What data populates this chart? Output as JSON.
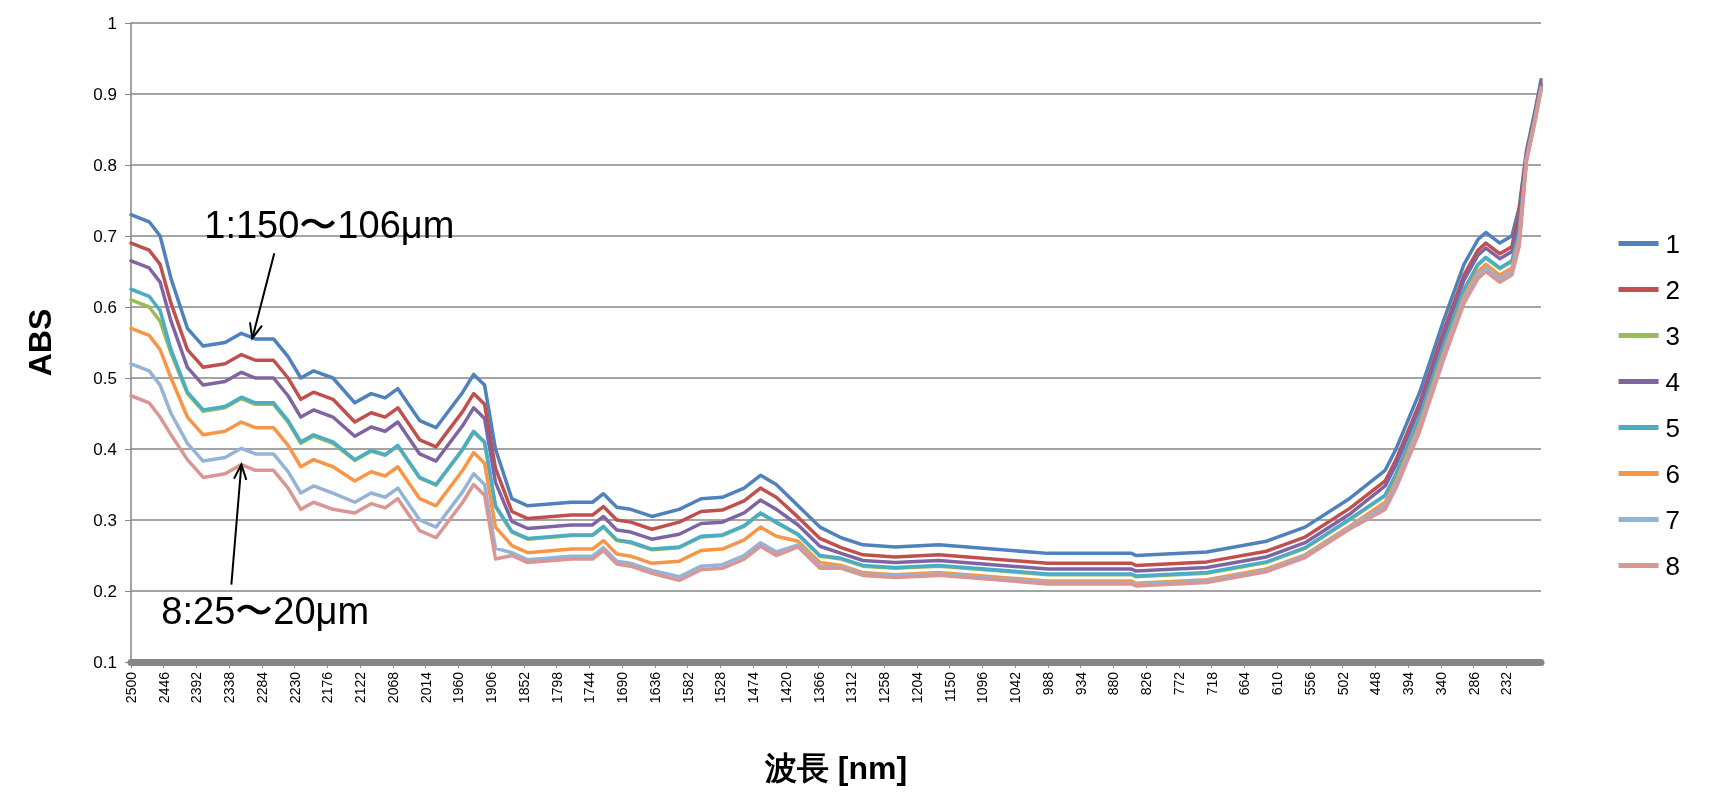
{
  "chart_data": {
    "type": "line",
    "xlabel": "波長 [nm]",
    "ylabel": "ABS",
    "xlim": [
      2500,
      175
    ],
    "ylim": [
      0.1,
      1
    ],
    "xticks": [
      2500,
      2446,
      2392,
      2338,
      2284,
      2230,
      2176,
      2122,
      2068,
      2014,
      1960,
      1906,
      1852,
      1798,
      1744,
      1690,
      1636,
      1582,
      1528,
      1474,
      1420,
      1366,
      1312,
      1258,
      1204,
      1150,
      1096,
      1042,
      988,
      934,
      880,
      826,
      772,
      718,
      664,
      610,
      556,
      502,
      448,
      394,
      340,
      286,
      232
    ],
    "yticks": [
      0.1,
      0.2,
      0.3,
      0.4,
      0.5,
      0.6,
      0.7,
      0.8,
      0.9,
      1
    ],
    "grid": "y",
    "legend": "right",
    "marker": "none",
    "line_style": "solid",
    "annotations": [
      {
        "text": "1:150〜106μm",
        "x": 2300,
        "y": 0.556
      },
      {
        "text": "8:25〜20μm",
        "x": 2318,
        "y": 0.378
      }
    ],
    "x": [
      2500,
      2470,
      2452,
      2434,
      2407,
      2381,
      2345,
      2318,
      2295,
      2265,
      2241,
      2220,
      2199,
      2167,
      2131,
      2104,
      2081,
      2060,
      2024,
      1997,
      1953,
      1935,
      1917,
      1899,
      1872,
      1846,
      1774,
      1739,
      1721,
      1699,
      1676,
      1641,
      1596,
      1560,
      1525,
      1489,
      1462,
      1436,
      1400,
      1364,
      1329,
      1293,
      1240,
      1168,
      988,
      850,
      843,
      726,
      628,
      564,
      491,
      432,
      414,
      375,
      336,
      302,
      279,
      266,
      243,
      223,
      211,
      199,
      184,
      175
    ],
    "series": [
      {
        "name": "1",
        "color": "#4f81bd",
        "values": [
          0.73,
          0.72,
          0.7,
          0.64,
          0.57,
          0.545,
          0.55,
          0.563,
          0.555,
          0.555,
          0.53,
          0.5,
          0.51,
          0.5,
          0.465,
          0.478,
          0.472,
          0.485,
          0.44,
          0.43,
          0.48,
          0.505,
          0.49,
          0.4,
          0.33,
          0.32,
          0.325,
          0.325,
          0.337,
          0.318,
          0.315,
          0.305,
          0.315,
          0.33,
          0.332,
          0.345,
          0.363,
          0.35,
          0.32,
          0.29,
          0.275,
          0.265,
          0.262,
          0.265,
          0.253,
          0.253,
          0.25,
          0.255,
          0.27,
          0.29,
          0.33,
          0.37,
          0.4,
          0.48,
          0.58,
          0.66,
          0.695,
          0.705,
          0.69,
          0.7,
          0.74,
          0.82,
          0.88,
          0.92
        ]
      },
      {
        "name": "2",
        "color": "#c0504d",
        "values": [
          0.69,
          0.68,
          0.66,
          0.605,
          0.54,
          0.515,
          0.52,
          0.533,
          0.525,
          0.525,
          0.5,
          0.47,
          0.48,
          0.47,
          0.438,
          0.451,
          0.445,
          0.458,
          0.413,
          0.403,
          0.453,
          0.478,
          0.463,
          0.373,
          0.312,
          0.302,
          0.307,
          0.307,
          0.319,
          0.3,
          0.297,
          0.287,
          0.297,
          0.312,
          0.314,
          0.327,
          0.345,
          0.332,
          0.304,
          0.274,
          0.261,
          0.251,
          0.248,
          0.251,
          0.239,
          0.239,
          0.236,
          0.241,
          0.256,
          0.276,
          0.316,
          0.355,
          0.385,
          0.465,
          0.565,
          0.645,
          0.68,
          0.69,
          0.675,
          0.685,
          0.735,
          0.815,
          0.875,
          0.915
        ]
      },
      {
        "name": "3",
        "color": "#9bbb59",
        "values": [
          0.61,
          0.6,
          0.58,
          0.535,
          0.478,
          0.453,
          0.458,
          0.471,
          0.463,
          0.463,
          0.438,
          0.408,
          0.418,
          0.408,
          0.384,
          0.397,
          0.391,
          0.404,
          0.359,
          0.349,
          0.399,
          0.424,
          0.409,
          0.319,
          0.283,
          0.273,
          0.278,
          0.278,
          0.29,
          0.271,
          0.268,
          0.258,
          0.261,
          0.276,
          0.278,
          0.291,
          0.309,
          0.296,
          0.279,
          0.249,
          0.245,
          0.235,
          0.232,
          0.235,
          0.223,
          0.223,
          0.22,
          0.225,
          0.24,
          0.26,
          0.3,
          0.334,
          0.364,
          0.444,
          0.544,
          0.624,
          0.659,
          0.669,
          0.654,
          0.664,
          0.704,
          0.81,
          0.87,
          0.91
        ]
      },
      {
        "name": "4",
        "color": "#8064a2",
        "values": [
          0.665,
          0.655,
          0.635,
          0.58,
          0.515,
          0.49,
          0.495,
          0.508,
          0.5,
          0.5,
          0.475,
          0.445,
          0.455,
          0.445,
          0.418,
          0.431,
          0.425,
          0.438,
          0.393,
          0.383,
          0.433,
          0.458,
          0.443,
          0.353,
          0.298,
          0.288,
          0.293,
          0.293,
          0.305,
          0.286,
          0.283,
          0.273,
          0.28,
          0.295,
          0.297,
          0.31,
          0.328,
          0.315,
          0.293,
          0.263,
          0.253,
          0.243,
          0.24,
          0.243,
          0.231,
          0.231,
          0.228,
          0.233,
          0.248,
          0.268,
          0.308,
          0.348,
          0.378,
          0.458,
          0.558,
          0.638,
          0.673,
          0.683,
          0.668,
          0.678,
          0.718,
          0.812,
          0.872,
          0.912
        ]
      },
      {
        "name": "5",
        "color": "#4bacc6",
        "values": [
          0.625,
          0.615,
          0.595,
          0.54,
          0.48,
          0.455,
          0.46,
          0.473,
          0.465,
          0.465,
          0.44,
          0.41,
          0.42,
          0.41,
          0.385,
          0.398,
          0.392,
          0.405,
          0.36,
          0.35,
          0.4,
          0.425,
          0.41,
          0.32,
          0.284,
          0.274,
          0.279,
          0.279,
          0.291,
          0.272,
          0.269,
          0.259,
          0.262,
          0.277,
          0.279,
          0.292,
          0.31,
          0.297,
          0.28,
          0.25,
          0.246,
          0.236,
          0.233,
          0.236,
          0.224,
          0.224,
          0.221,
          0.226,
          0.241,
          0.261,
          0.301,
          0.335,
          0.365,
          0.445,
          0.545,
          0.625,
          0.66,
          0.67,
          0.655,
          0.665,
          0.705,
          0.81,
          0.87,
          0.91
        ]
      },
      {
        "name": "6",
        "color": "#f79646",
        "values": [
          0.57,
          0.56,
          0.54,
          0.5,
          0.445,
          0.42,
          0.425,
          0.438,
          0.43,
          0.43,
          0.405,
          0.375,
          0.385,
          0.375,
          0.355,
          0.368,
          0.362,
          0.375,
          0.33,
          0.32,
          0.37,
          0.395,
          0.38,
          0.29,
          0.264,
          0.254,
          0.259,
          0.259,
          0.271,
          0.252,
          0.249,
          0.239,
          0.242,
          0.257,
          0.259,
          0.272,
          0.29,
          0.277,
          0.27,
          0.24,
          0.236,
          0.226,
          0.223,
          0.226,
          0.214,
          0.214,
          0.211,
          0.216,
          0.231,
          0.251,
          0.291,
          0.325,
          0.355,
          0.435,
          0.535,
          0.615,
          0.65,
          0.66,
          0.645,
          0.655,
          0.695,
          0.808,
          0.868,
          0.908
        ]
      },
      {
        "name": "7",
        "color": "#95b3d7",
        "values": [
          0.52,
          0.51,
          0.49,
          0.45,
          0.408,
          0.383,
          0.388,
          0.401,
          0.393,
          0.393,
          0.368,
          0.338,
          0.348,
          0.338,
          0.325,
          0.338,
          0.332,
          0.345,
          0.3,
          0.29,
          0.34,
          0.365,
          0.35,
          0.26,
          0.254,
          0.244,
          0.249,
          0.249,
          0.261,
          0.242,
          0.239,
          0.229,
          0.22,
          0.235,
          0.237,
          0.25,
          0.268,
          0.255,
          0.265,
          0.235,
          0.234,
          0.224,
          0.221,
          0.224,
          0.212,
          0.212,
          0.209,
          0.214,
          0.229,
          0.249,
          0.289,
          0.32,
          0.35,
          0.43,
          0.53,
          0.61,
          0.645,
          0.655,
          0.64,
          0.65,
          0.69,
          0.806,
          0.866,
          0.906
        ]
      },
      {
        "name": "8",
        "color": "#d99694",
        "values": [
          0.475,
          0.465,
          0.445,
          0.42,
          0.385,
          0.36,
          0.365,
          0.378,
          0.37,
          0.37,
          0.345,
          0.315,
          0.325,
          0.315,
          0.31,
          0.323,
          0.317,
          0.33,
          0.285,
          0.275,
          0.325,
          0.35,
          0.335,
          0.245,
          0.25,
          0.24,
          0.245,
          0.245,
          0.257,
          0.238,
          0.235,
          0.225,
          0.215,
          0.23,
          0.232,
          0.245,
          0.263,
          0.25,
          0.262,
          0.232,
          0.232,
          0.222,
          0.219,
          0.222,
          0.21,
          0.21,
          0.207,
          0.212,
          0.227,
          0.247,
          0.287,
          0.315,
          0.345,
          0.425,
          0.525,
          0.605,
          0.64,
          0.65,
          0.635,
          0.645,
          0.685,
          0.805,
          0.865,
          0.905
        ]
      }
    ]
  }
}
